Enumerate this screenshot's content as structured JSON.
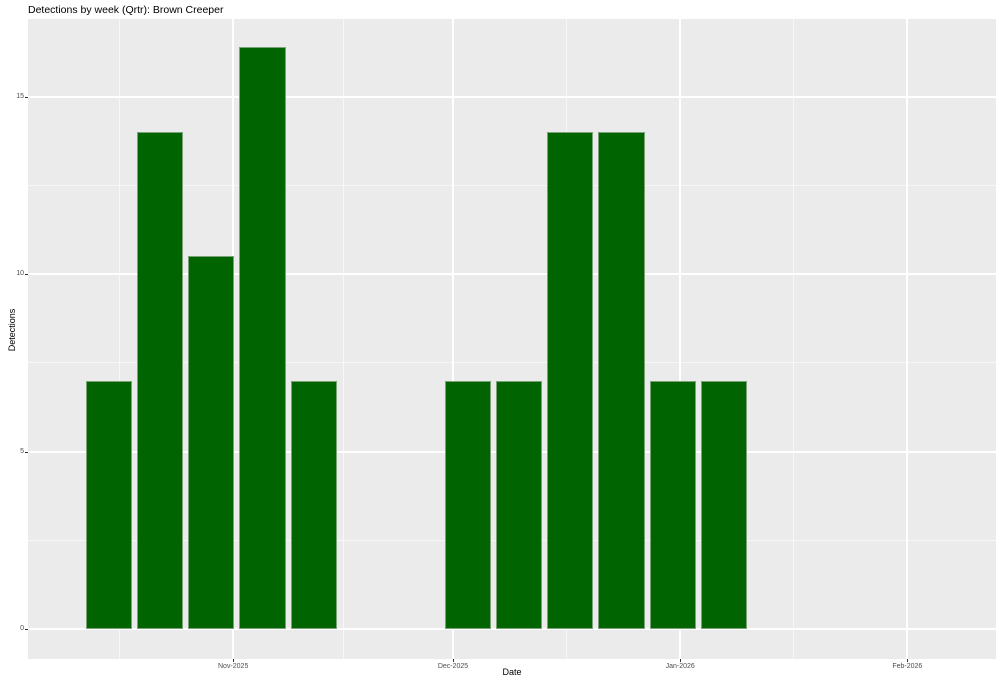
{
  "title": "Detections by week (Qrtr): Brown Creeper",
  "axes": {
    "x_title": "Date",
    "y_title": "Detections"
  },
  "chart_data": {
    "type": "bar",
    "title": "Detections by week (Qrtr): Brown Creeper",
    "xlabel": "Date",
    "ylabel": "Detections",
    "series_name": "Brown Creeper weekly detections",
    "x_estimated_week_start": [
      "2025-10-15",
      "2025-10-22",
      "2025-10-29",
      "2025-11-05",
      "2025-11-12",
      "2025-12-03",
      "2025-12-10",
      "2025-12-17",
      "2025-12-24",
      "2025-12-31",
      "2026-01-07"
    ],
    "values": [
      7,
      14,
      10.5,
      16.4,
      7,
      7,
      7,
      14,
      14,
      7,
      7
    ],
    "bar_day_offsets_from_nov1": [
      -17,
      -10,
      -3,
      4,
      11,
      32,
      39,
      46,
      53,
      60,
      67
    ],
    "bar_width_days": 6.3,
    "x_ticks": [
      {
        "label": "Nov-2025",
        "day": 0
      },
      {
        "label": "Dec-2025",
        "day": 30
      },
      {
        "label": "Jan-2026",
        "day": 61
      },
      {
        "label": "Feb-2026",
        "day": 92
      }
    ],
    "x_minor_days": [
      -15.5,
      15,
      45.5,
      76.5
    ],
    "y_ticks": [
      0,
      5,
      10,
      15
    ],
    "y_minor_ticks": [
      2.5,
      7.5,
      12.5
    ],
    "xlim_days": [
      -28,
      104.1
    ],
    "ylim": [
      -0.84,
      17.19
    ],
    "grid": true,
    "legend": "none",
    "colors": {
      "bar": "#006400",
      "bar_edge": "#7aa37a",
      "panel_bg": "#EBEBEB",
      "grid": "#FFFFFF",
      "tick_label": "#4D4D4D",
      "tick_mark": "#333333",
      "axis_title": "#000000",
      "title": "#000000",
      "background": "#FFFFFF"
    }
  }
}
